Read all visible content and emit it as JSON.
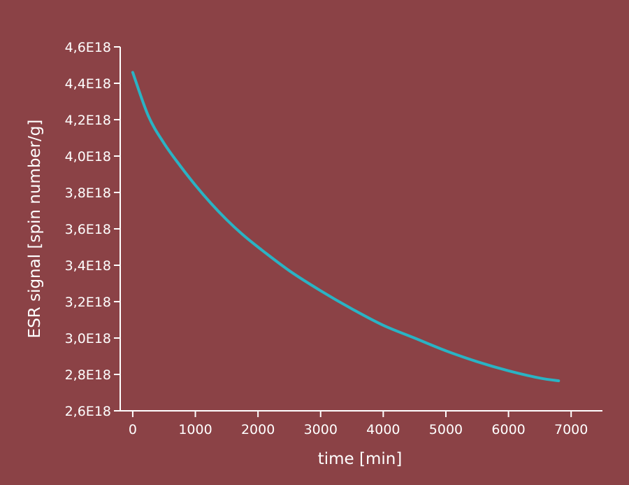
{
  "chart_data": {
    "type": "line",
    "title": "",
    "xlabel": "time [min]",
    "ylabel": "ESR signal [spin number/g]",
    "xlim": [
      -200,
      7500
    ],
    "ylim": [
      2.6e+18,
      4.6e+18
    ],
    "x_ticks": [
      0,
      1000,
      2000,
      3000,
      4000,
      5000,
      6000,
      7000
    ],
    "x_tick_labels": [
      "0",
      "1000",
      "2000",
      "3000",
      "4000",
      "5000",
      "6000",
      "7000"
    ],
    "y_ticks": [
      2.6e+18,
      2.8e+18,
      3e+18,
      3.2e+18,
      3.4e+18,
      3.6e+18,
      3.8e+18,
      4e+18,
      4.2e+18,
      4.4e+18,
      4.6e+18
    ],
    "y_tick_labels": [
      "2,6E18",
      "2,8E18",
      "3,0E18",
      "3,2E18",
      "3,4E18",
      "3,6E18",
      "3,8E18",
      "4,0E18",
      "4,2E18",
      "4,4E18",
      "4,6E18"
    ],
    "grid": false,
    "series": [
      {
        "color": "#2ab3c4",
        "x": [
          0,
          250,
          500,
          750,
          1000,
          1250,
          1500,
          1750,
          2000,
          2500,
          3000,
          3500,
          4000,
          4500,
          5000,
          5500,
          6000,
          6500,
          6800
        ],
        "y": [
          4.46e+18,
          4.22e+18,
          4.07e+18,
          3.95e+18,
          3.84e+18,
          3.74e+18,
          3.65e+18,
          3.57e+18,
          3.5e+18,
          3.37e+18,
          3.26e+18,
          3.16e+18,
          3.07e+18,
          3e+18,
          2.93e+18,
          2.87e+18,
          2.82e+18,
          2.78e+18,
          2.765e+18
        ]
      }
    ]
  },
  "colors": {
    "background": "#8b4246",
    "axis": "#ffffff",
    "line": "#2ab3c4"
  }
}
